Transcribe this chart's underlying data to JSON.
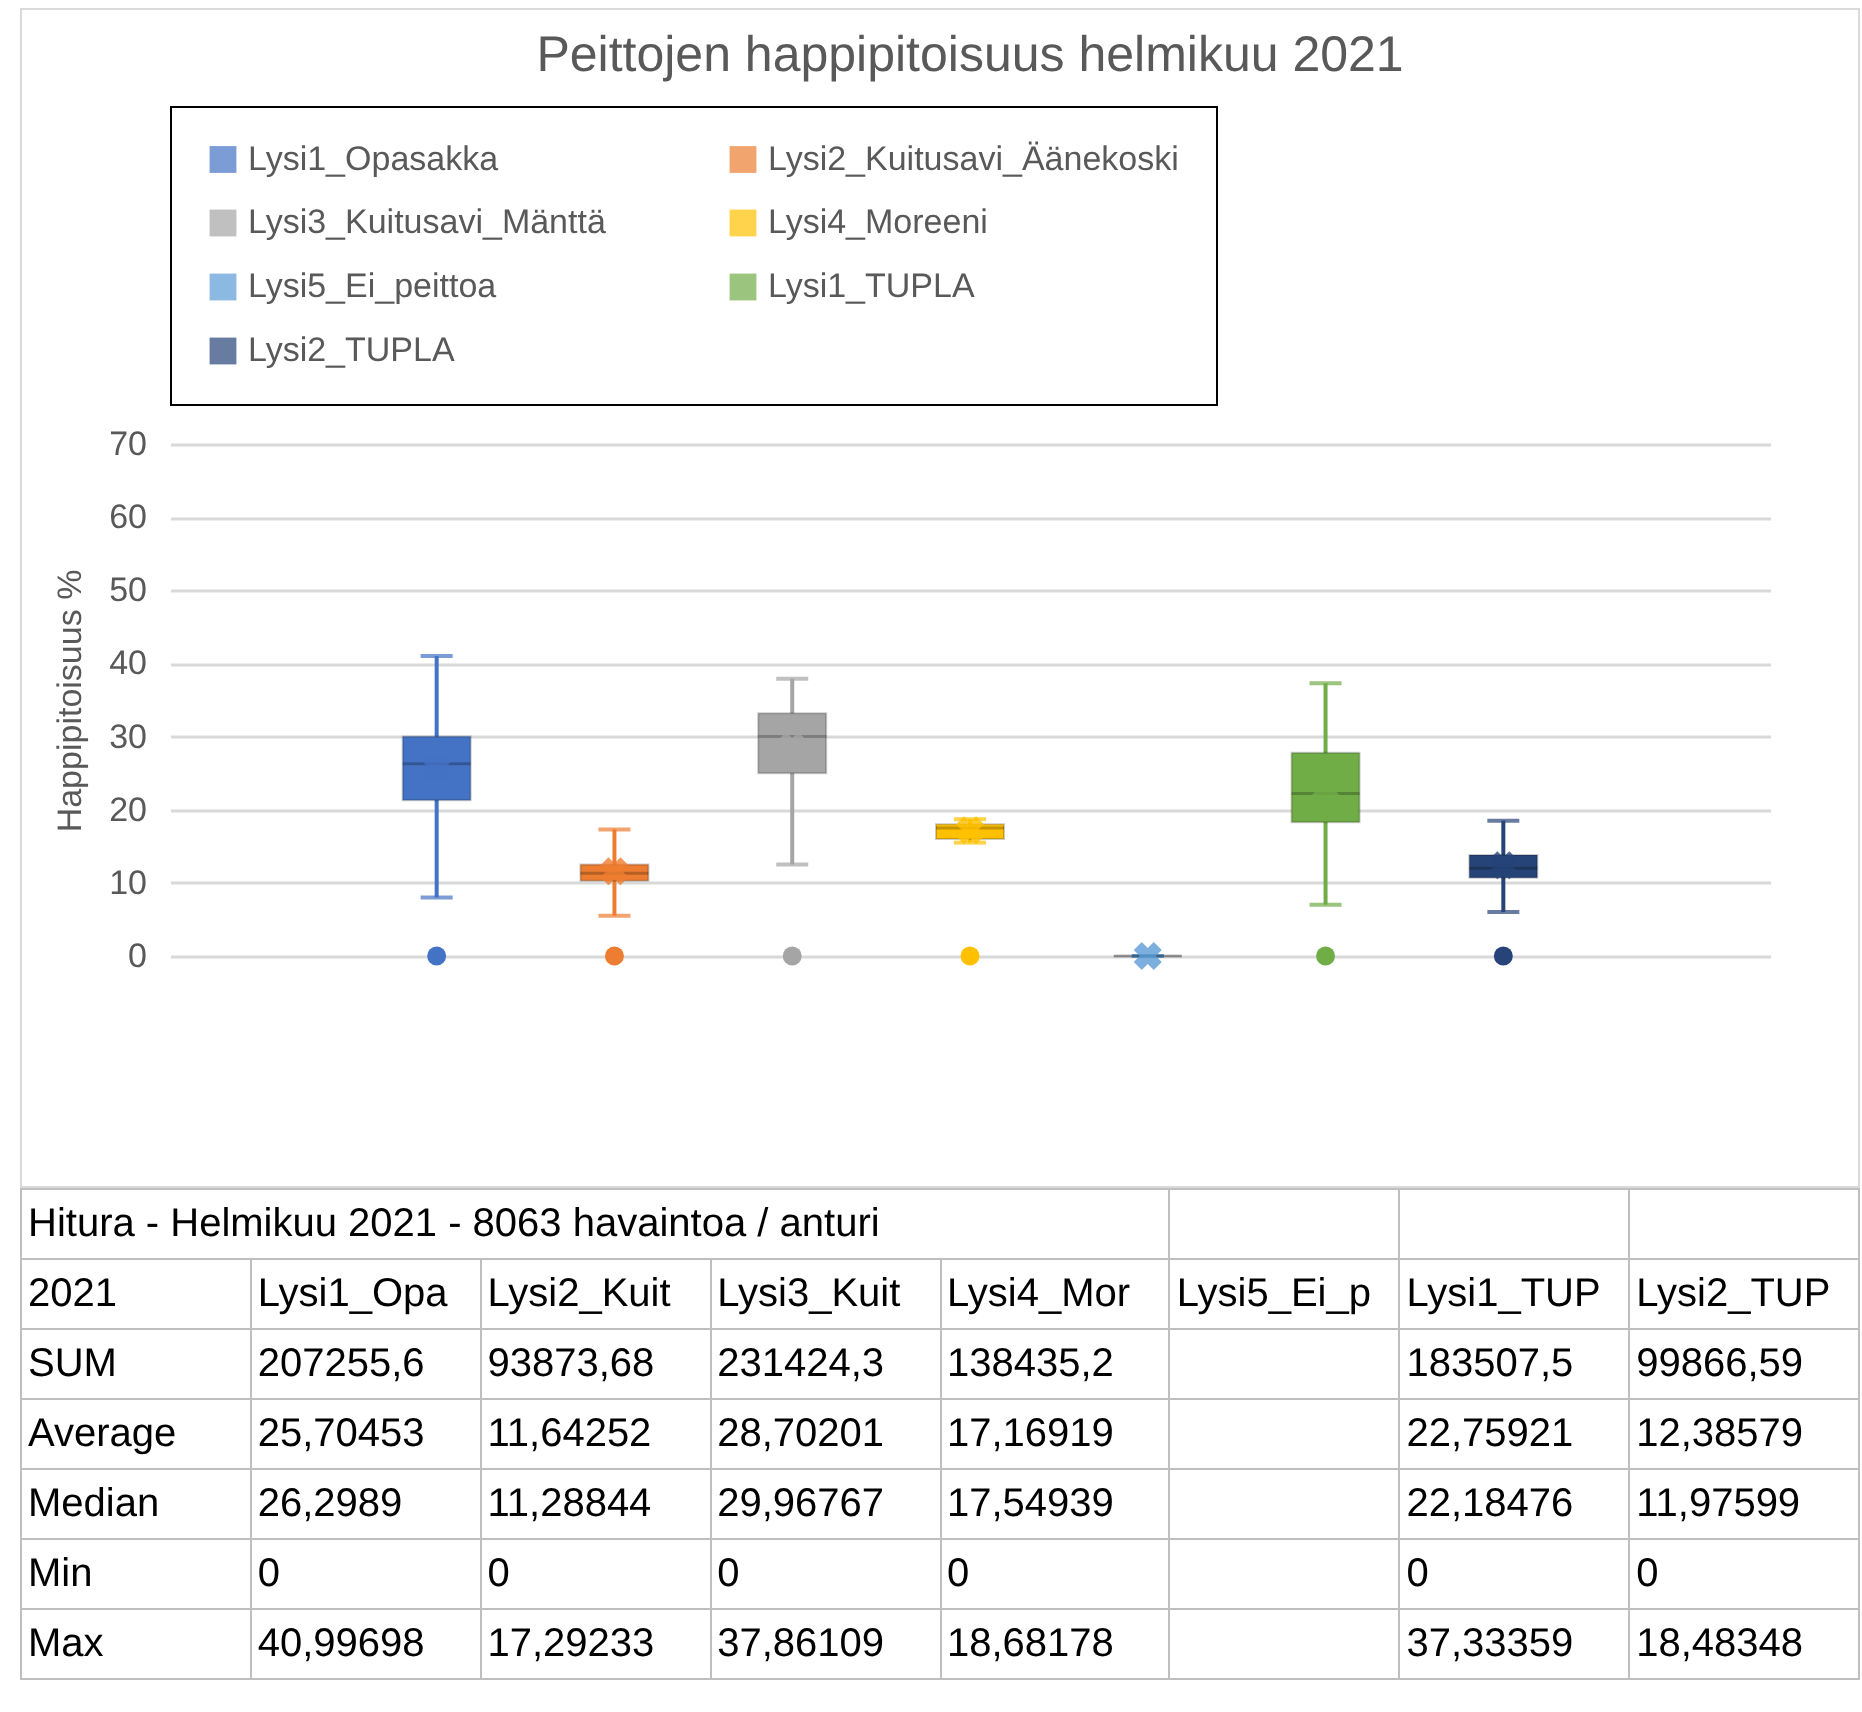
{
  "chart_data": {
    "type": "box",
    "title": "Peittojen happipitoisuus helmikuu 2021",
    "ylabel": "Happipitoisuus %",
    "categories": [
      null
    ],
    "series": [
      {
        "name": "Lysi1_Opasakka",
        "color": "#4472c4",
        "boxes": [
          {
            "low": 8,
            "q1": 21.3,
            "median": 26.3,
            "q3": 30,
            "high": 41,
            "mean": 25.7,
            "outliers": [
              0
            ]
          }
        ]
      },
      {
        "name": "Lysi2_Kuitusavi_Äänekoski",
        "color": "#ed7d31",
        "boxes": [
          {
            "low": 5.5,
            "q1": 10.3,
            "median": 11.3,
            "q3": 12.5,
            "high": 17.3,
            "mean": 11.6,
            "outliers": [
              0
            ]
          }
        ]
      },
      {
        "name": "Lysi3_Kuitusavi_Mänttä",
        "color": "#a5a5a5",
        "boxes": [
          {
            "low": 12.5,
            "q1": 25,
            "median": 30,
            "q3": 33.2,
            "high": 37.9,
            "mean": 28.7,
            "outliers": [
              0
            ]
          }
        ]
      },
      {
        "name": "Lysi4_Moreeni",
        "color": "#ffc000",
        "boxes": [
          {
            "low": 15.5,
            "q1": 16,
            "median": 17.5,
            "q3": 18,
            "high": 18.7,
            "mean": 17.2,
            "outliers": [
              0
            ]
          }
        ]
      },
      {
        "name": "Lysi5_Ei_peittoa",
        "color": "#5b9bd5",
        "boxes": [
          {
            "low": 0,
            "q1": 0,
            "median": 0,
            "q3": 0,
            "high": 0,
            "mean": 0
          }
        ]
      },
      {
        "name": "Lysi1_TUPLA",
        "color": "#70ad47",
        "boxes": [
          {
            "low": 7,
            "q1": 18.3,
            "median": 22.2,
            "q3": 27.8,
            "high": 37.3,
            "mean": 22.8,
            "outliers": [
              0
            ]
          }
        ]
      },
      {
        "name": "Lysi2_TUPLA",
        "color": "#264478",
        "boxes": [
          {
            "low": 6,
            "q1": 10.7,
            "median": 12,
            "q3": 13.8,
            "high": 18.5,
            "mean": 12.4,
            "outliers": [
              0
            ]
          }
        ]
      }
    ],
    "ylim": [
      0,
      70
    ],
    "yticks": [
      0,
      10,
      20,
      30,
      40,
      50,
      60,
      70
    ],
    "grid": "y",
    "legend": "top",
    "annotations": [
      "Hitura - Helmikuu 2021 - 8063 havaintoa / anturi",
      "2021",
      "Lysi1_Opa",
      "Lysi2_Kuit",
      "Lysi3_Kuit",
      "Lysi4_Mor",
      "Lysi5_Ei_p",
      "Lysi1_TUP",
      "Lysi2_TUP",
      "SUM",
      "207255,6",
      "93873,68",
      "231424,3",
      "138435,2",
      null,
      "183507,5",
      "99866,59",
      "Average",
      "25,70453",
      "11,64252",
      "28,70201",
      "17,16919",
      null,
      "22,75921",
      "12,38579",
      "Median",
      "26,2989",
      "11,28844",
      "29,96767",
      "17,54939",
      null,
      "22,18476",
      "11,97599",
      "Min",
      "0",
      "0",
      "0",
      "0",
      null,
      "0",
      "0",
      "Max",
      "40,99698",
      "17,29233",
      "37,86109",
      "18,68178",
      null,
      "37,33359",
      "18,48348"
    ]
  }
}
